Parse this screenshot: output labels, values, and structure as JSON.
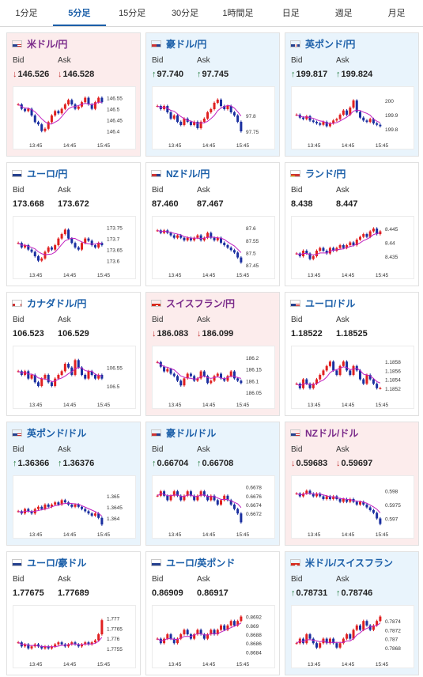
{
  "tabs": [
    {
      "label": "1分足",
      "active": false
    },
    {
      "label": "5分足",
      "active": true
    },
    {
      "label": "15分足",
      "active": false
    },
    {
      "label": "30分足",
      "active": false
    },
    {
      "label": "1時間足",
      "active": false
    },
    {
      "label": "日足",
      "active": false
    },
    {
      "label": "週足",
      "active": false
    },
    {
      "label": "月足",
      "active": false
    }
  ],
  "labels": {
    "bid": "Bid",
    "ask": "Ask"
  },
  "colors": {
    "up": "#e9f4fc",
    "down": "#fcecec",
    "rise": "#e02020",
    "fall": "#1a2fa0",
    "ma": "#c020c0"
  },
  "pairs": [
    {
      "name": "米ドル/円",
      "flag": "flag-us",
      "trend": "down",
      "arrow": "↓",
      "bid": "146.526",
      "ask": "146.528",
      "chart_data": {
        "type": "candlestick",
        "x_ticks": [
          "13:45",
          "14:45",
          "15:45"
        ],
        "y_ticks": [
          "146.55",
          "146.5",
          "146.45",
          "146.4"
        ],
        "ylim": [
          146.37,
          146.57
        ],
        "closes": [
          146.52,
          146.5,
          146.49,
          146.5,
          146.47,
          146.44,
          146.43,
          146.4,
          146.41,
          146.44,
          146.47,
          146.49,
          146.48,
          146.5,
          146.52,
          146.54,
          146.52,
          146.5,
          146.51,
          146.53,
          146.55,
          146.52,
          146.5,
          146.53,
          146.55,
          146.53
        ]
      }
    },
    {
      "name": "豪ドル/円",
      "flag": "flag-au",
      "trend": "up",
      "arrow": "↑",
      "bid": "97.740",
      "ask": "97.745",
      "chart_data": {
        "type": "candlestick",
        "x_ticks": [
          "13:45",
          "14:45",
          "15:45"
        ],
        "y_ticks": [
          "97.8",
          "97.75"
        ],
        "ylim": [
          97.73,
          97.87
        ],
        "closes": [
          97.83,
          97.82,
          97.83,
          97.81,
          97.79,
          97.8,
          97.78,
          97.77,
          97.79,
          97.78,
          97.77,
          97.78,
          97.76,
          97.78,
          97.79,
          97.81,
          97.82,
          97.84,
          97.85,
          97.83,
          97.82,
          97.83,
          97.81,
          97.8,
          97.78,
          97.75
        ]
      }
    },
    {
      "name": "英ポンド/円",
      "flag": "flag-gb",
      "trend": "up",
      "arrow": "↑",
      "bid": "199.817",
      "ask": "199.824",
      "chart_data": {
        "type": "candlestick",
        "x_ticks": [
          "13:45",
          "14:45",
          "15:45"
        ],
        "y_ticks": [
          "200",
          "199.9",
          "199.8"
        ],
        "ylim": [
          199.74,
          200.05
        ],
        "closes": [
          199.9,
          199.88,
          199.87,
          199.89,
          199.86,
          199.85,
          199.84,
          199.83,
          199.85,
          199.82,
          199.84,
          199.86,
          199.87,
          199.9,
          199.93,
          199.9,
          199.95,
          200.0,
          199.92,
          199.88,
          199.86,
          199.85,
          199.87,
          199.84,
          199.83,
          199.82
        ]
      }
    },
    {
      "name": "ユーロ/円",
      "flag": "flag-eu",
      "trend": "flat",
      "arrow": "",
      "bid": "173.668",
      "ask": "173.672",
      "chart_data": {
        "type": "candlestick",
        "x_ticks": [
          "13:45",
          "14:45",
          "15:45"
        ],
        "y_ticks": [
          "173.75",
          "173.7",
          "173.65",
          "173.6"
        ],
        "ylim": [
          173.57,
          173.77
        ],
        "closes": [
          173.68,
          173.66,
          173.67,
          173.65,
          173.64,
          173.62,
          173.6,
          173.61,
          173.64,
          173.66,
          173.65,
          173.67,
          173.7,
          173.72,
          173.74,
          173.7,
          173.68,
          173.66,
          173.65,
          173.68,
          173.7,
          173.69,
          173.67,
          173.66,
          173.68,
          173.67
        ]
      }
    },
    {
      "name": "NZドル/円",
      "flag": "flag-nz",
      "trend": "flat",
      "arrow": "",
      "bid": "87.460",
      "ask": "87.467",
      "chart_data": {
        "type": "candlestick",
        "x_ticks": [
          "13:45",
          "14:45",
          "15:45"
        ],
        "y_ticks": [
          "87.6",
          "87.55",
          "87.5",
          "87.45"
        ],
        "ylim": [
          87.44,
          87.62
        ],
        "closes": [
          87.59,
          87.58,
          87.59,
          87.58,
          87.57,
          87.56,
          87.57,
          87.56,
          87.55,
          87.56,
          87.55,
          87.56,
          87.57,
          87.55,
          87.56,
          87.58,
          87.56,
          87.55,
          87.56,
          87.54,
          87.53,
          87.52,
          87.51,
          87.5,
          87.48,
          87.46
        ]
      }
    },
    {
      "name": "ランド/円",
      "flag": "flag-za",
      "trend": "flat",
      "arrow": "",
      "bid": "8.438",
      "ask": "8.447",
      "chart_data": {
        "type": "candlestick",
        "x_ticks": [
          "13:45",
          "14:45",
          "15:45"
        ],
        "y_ticks": [
          "8.445",
          "8.44",
          "8.435"
        ],
        "ylim": [
          8.431,
          8.447
        ],
        "closes": [
          8.436,
          8.435,
          8.437,
          8.436,
          8.434,
          8.435,
          8.437,
          8.438,
          8.437,
          8.436,
          8.438,
          8.437,
          8.438,
          8.439,
          8.438,
          8.439,
          8.44,
          8.439,
          8.441,
          8.442,
          8.443,
          8.442,
          8.444,
          8.445,
          8.443,
          8.444
        ]
      }
    },
    {
      "name": "カナダドル/円",
      "flag": "flag-ca",
      "trend": "flat",
      "arrow": "",
      "bid": "106.523",
      "ask": "106.529",
      "chart_data": {
        "type": "candlestick",
        "x_ticks": [
          "13:45",
          "14:45",
          "15:45"
        ],
        "y_ticks": [
          "106.55",
          "106.5"
        ],
        "ylim": [
          106.47,
          106.59
        ],
        "closes": [
          106.54,
          106.53,
          106.54,
          106.52,
          106.53,
          106.51,
          106.5,
          106.52,
          106.53,
          106.51,
          106.5,
          106.52,
          106.53,
          106.54,
          106.56,
          106.55,
          106.53,
          106.57,
          106.55,
          106.53,
          106.52,
          106.54,
          106.53,
          106.52,
          106.53,
          106.52
        ]
      }
    },
    {
      "name": "スイスフラン/円",
      "flag": "flag-ch",
      "trend": "down",
      "arrow": "↓",
      "bid": "186.083",
      "ask": "186.099",
      "chart_data": {
        "type": "candlestick",
        "x_ticks": [
          "13:45",
          "14:45",
          "15:45"
        ],
        "y_ticks": [
          "186.2",
          "186.15",
          "186.1",
          "186.05"
        ],
        "ylim": [
          186.03,
          186.22
        ],
        "closes": [
          186.18,
          186.16,
          186.14,
          186.15,
          186.13,
          186.12,
          186.1,
          186.08,
          186.11,
          186.13,
          186.12,
          186.1,
          186.11,
          186.14,
          186.12,
          186.09,
          186.1,
          186.12,
          186.13,
          186.11,
          186.1,
          186.12,
          186.14,
          186.11,
          186.1,
          186.09
        ]
      }
    },
    {
      "name": "ユーロ/ドル",
      "flag": "flag-us",
      "trend": "flat",
      "arrow": "",
      "bid": "1.18522",
      "ask": "1.18525",
      "chart_data": {
        "type": "candlestick",
        "x_ticks": [
          "13:45",
          "14:45",
          "15:45"
        ],
        "y_ticks": [
          "1.1858",
          "1.1856",
          "1.1854",
          "1.1852"
        ],
        "ylim": [
          1.185,
          1.186
        ],
        "closes": [
          1.1853,
          1.1852,
          1.1854,
          1.1853,
          1.1852,
          1.1853,
          1.1854,
          1.1855,
          1.1856,
          1.1857,
          1.1858,
          1.1856,
          1.1855,
          1.1857,
          1.1858,
          1.1856,
          1.1855,
          1.1857,
          1.1856,
          1.1854,
          1.1853,
          1.1855,
          1.1854,
          1.1853,
          1.1852,
          1.1852
        ]
      }
    },
    {
      "name": "英ポンド/ドル",
      "flag": "flag-us",
      "trend": "up",
      "arrow": "↑",
      "bid": "1.36366",
      "ask": "1.36376",
      "chart_data": {
        "type": "candlestick",
        "x_ticks": [
          "13:45",
          "14:45",
          "15:45"
        ],
        "y_ticks": [
          "1.365",
          "1.3645",
          "1.364"
        ],
        "ylim": [
          1.3636,
          1.3656
        ],
        "closes": [
          1.3643,
          1.3642,
          1.3644,
          1.3643,
          1.3642,
          1.3644,
          1.3645,
          1.3644,
          1.3646,
          1.3645,
          1.3646,
          1.3647,
          1.3646,
          1.3648,
          1.3647,
          1.3646,
          1.3645,
          1.3646,
          1.3645,
          1.3644,
          1.3643,
          1.3642,
          1.3641,
          1.3642,
          1.364,
          1.3637
        ]
      }
    },
    {
      "name": "豪ドル/ドル",
      "flag": "flag-au",
      "trend": "up",
      "arrow": "↑",
      "bid": "0.66704",
      "ask": "0.66708",
      "chart_data": {
        "type": "candlestick",
        "x_ticks": [
          "13:45",
          "14:45",
          "15:45"
        ],
        "y_ticks": [
          "0.6678",
          "0.6676",
          "0.6674",
          "0.6672"
        ],
        "ylim": [
          0.6669,
          0.6679
        ],
        "closes": [
          0.6676,
          0.6677,
          0.6676,
          0.6675,
          0.6676,
          0.6677,
          0.6676,
          0.6675,
          0.6676,
          0.6677,
          0.6676,
          0.6675,
          0.6676,
          0.6677,
          0.6676,
          0.6675,
          0.6676,
          0.6675,
          0.6674,
          0.6675,
          0.6676,
          0.6675,
          0.6674,
          0.6673,
          0.6672,
          0.667
        ]
      }
    },
    {
      "name": "NZドル/ドル",
      "flag": "flag-us",
      "trend": "down",
      "arrow": "↓",
      "bid": "0.59683",
      "ask": "0.59697",
      "chart_data": {
        "type": "candlestick",
        "x_ticks": [
          "13:45",
          "14:45",
          "15:45"
        ],
        "y_ticks": [
          "0.598",
          "0.5975",
          "0.597"
        ],
        "ylim": [
          0.5967,
          0.5983
        ],
        "closes": [
          0.5979,
          0.5978,
          0.5979,
          0.598,
          0.5979,
          0.5978,
          0.5979,
          0.5978,
          0.5977,
          0.5978,
          0.5977,
          0.5978,
          0.5977,
          0.5976,
          0.5977,
          0.5976,
          0.5977,
          0.5976,
          0.5975,
          0.5976,
          0.5975,
          0.5974,
          0.5973,
          0.5972,
          0.597,
          0.5968
        ]
      }
    },
    {
      "name": "ユーロ/豪ドル",
      "flag": "flag-eu",
      "trend": "flat",
      "arrow": "",
      "bid": "1.77675",
      "ask": "1.77689",
      "chart_data": {
        "type": "candlestick",
        "x_ticks": [
          "13:45",
          "14:45",
          "15:45"
        ],
        "y_ticks": [
          "1.777",
          "1.7765",
          "1.776",
          "1.7755"
        ],
        "ylim": [
          1.7751,
          1.7773
        ],
        "closes": [
          1.7758,
          1.7756,
          1.7757,
          1.7755,
          1.7756,
          1.7757,
          1.7756,
          1.7755,
          1.7756,
          1.7755,
          1.7756,
          1.7757,
          1.7758,
          1.7757,
          1.7756,
          1.7757,
          1.7758,
          1.7757,
          1.7756,
          1.7757,
          1.7758,
          1.7757,
          1.7758,
          1.7759,
          1.7762,
          1.7769
        ]
      }
    },
    {
      "name": "ユーロ/英ポンド",
      "flag": "flag-eu",
      "trend": "flat",
      "arrow": "",
      "bid": "0.86909",
      "ask": "0.86917",
      "chart_data": {
        "type": "candlestick",
        "x_ticks": [
          "13:45",
          "14:45",
          "15:45"
        ],
        "y_ticks": [
          "0.8692",
          "0.869",
          "0.8688",
          "0.8686",
          "0.8684"
        ],
        "ylim": [
          0.8683,
          0.8693
        ],
        "closes": [
          0.8687,
          0.8686,
          0.8687,
          0.8688,
          0.8687,
          0.8686,
          0.8687,
          0.8688,
          0.8689,
          0.8688,
          0.8687,
          0.8688,
          0.8689,
          0.8688,
          0.8687,
          0.8688,
          0.8689,
          0.8688,
          0.8689,
          0.869,
          0.8689,
          0.869,
          0.8691,
          0.869,
          0.8691,
          0.8692
        ]
      }
    },
    {
      "name": "米ドル/スイスフラン",
      "flag": "flag-ch",
      "trend": "up",
      "arrow": "↑",
      "bid": "0.78731",
      "ask": "0.78746",
      "chart_data": {
        "type": "candlestick",
        "x_ticks": [
          "13:45",
          "14:45",
          "15:45"
        ],
        "y_ticks": [
          "0.7874",
          "0.7872",
          "0.787",
          "0.7868"
        ],
        "ylim": [
          0.7866,
          0.7876
        ],
        "closes": [
          0.7869,
          0.787,
          0.7869,
          0.7871,
          0.787,
          0.7869,
          0.7868,
          0.7869,
          0.787,
          0.7869,
          0.787,
          0.7869,
          0.7868,
          0.7869,
          0.787,
          0.7871,
          0.787,
          0.7872,
          0.7873,
          0.7872,
          0.7874,
          0.7873,
          0.7872,
          0.7873,
          0.7874,
          0.7875
        ]
      }
    }
  ]
}
